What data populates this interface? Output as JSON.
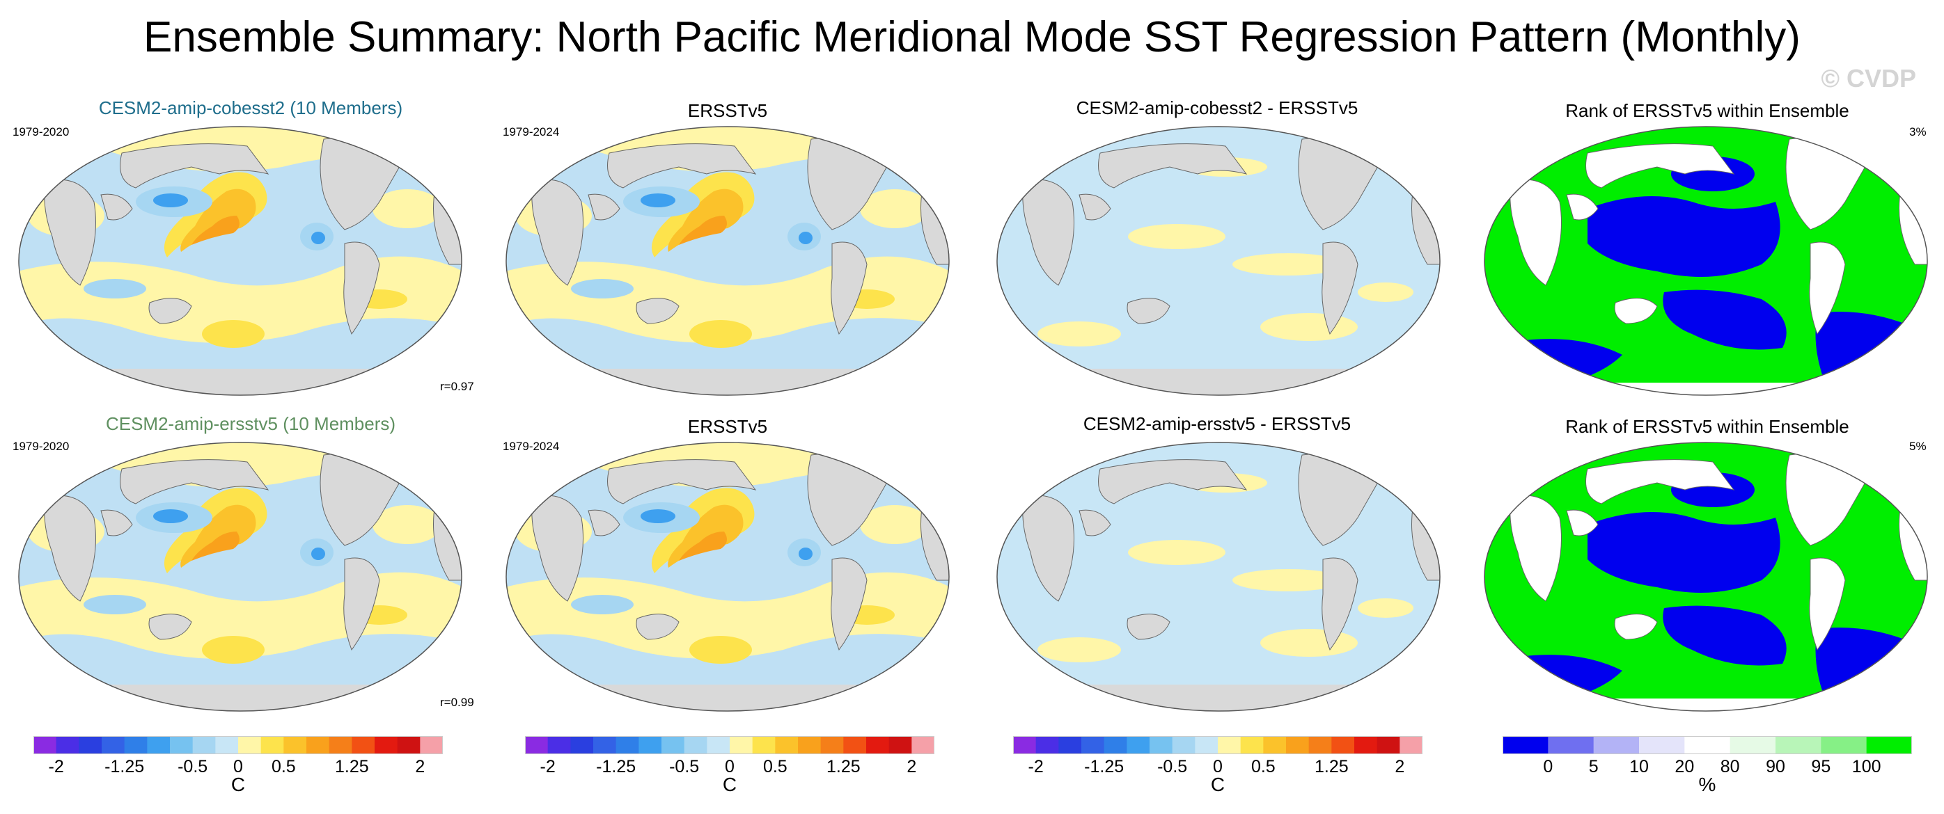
{
  "title": "Ensemble Summary: North Pacific Meridional Mode SST Regression Pattern (Monthly)",
  "watermark": "© CVDP",
  "colors": {
    "model1_title": "#1f6e8c",
    "model2_title": "#5f9060",
    "land": "#d9d9d9",
    "rank_low": "#0000ee",
    "rank_high": "#00ee00"
  },
  "rows": [
    {
      "panels": [
        {
          "title": "CESM2-amip-cobesst2 (10 Members)",
          "period": "1979-2020",
          "stat": "r=0.97"
        },
        {
          "title": "ERSSTv5",
          "period": "1979-2024",
          "stat": ""
        },
        {
          "title": "CESM2-amip-cobesst2 - ERSSTv5",
          "period": "",
          "stat": ""
        },
        {
          "title": "Rank of ERSSTv5 within Ensemble",
          "period": "",
          "stat": "3%"
        }
      ]
    },
    {
      "panels": [
        {
          "title": "CESM2-amip-ersstv5 (10 Members)",
          "period": "1979-2020",
          "stat": "r=0.99"
        },
        {
          "title": "ERSSTv5",
          "period": "1979-2024",
          "stat": ""
        },
        {
          "title": "CESM2-amip-ersstv5 - ERSSTv5",
          "period": "",
          "stat": ""
        },
        {
          "title": "Rank of ERSSTv5 within Ensemble",
          "period": "",
          "stat": "5%"
        }
      ]
    }
  ],
  "chart_data": [
    {
      "type": "colorbar",
      "unit": "C",
      "tick_labels": [
        "-2",
        "-1.25",
        "-0.5",
        "0",
        "0.5",
        "1.25",
        "2"
      ],
      "tick_values": [
        -2,
        -1.25,
        -0.5,
        0,
        0.5,
        1.25,
        2
      ],
      "levels": [
        -2,
        -1.75,
        -1.5,
        -1.25,
        -1,
        -0.75,
        -0.5,
        -0.25,
        0,
        0.25,
        0.5,
        0.75,
        1,
        1.25,
        1.5,
        1.75,
        2
      ],
      "colors": [
        "#8a2be2",
        "#4b2ee6",
        "#2a3fe0",
        "#3362e6",
        "#2f7fe8",
        "#3ea0ef",
        "#76c2f0",
        "#a6d6f2",
        "#c8e6f6",
        "#fff6a8",
        "#fde34c",
        "#fbc22b",
        "#f9a11c",
        "#f57f19",
        "#f25114",
        "#e31a10",
        "#cf1212",
        "#f5a0a8"
      ],
      "applies_to": [
        "row1 col1",
        "row1 col2",
        "row1 col3",
        "row2 col1",
        "row2 col2",
        "row2 col3"
      ]
    },
    {
      "type": "colorbar",
      "unit": "%",
      "tick_labels": [
        "0",
        "5",
        "10",
        "20",
        "80",
        "90",
        "95",
        "100"
      ],
      "tick_values": [
        0,
        5,
        10,
        20,
        80,
        90,
        95,
        100
      ],
      "colors": [
        "#0000ee",
        "#6f6ff0",
        "#b3b3f6",
        "#e4e4fa",
        "#ffffff",
        "#e6fae6",
        "#b8f5b8",
        "#86f086",
        "#00ee00"
      ],
      "applies_to": [
        "row1 col4",
        "row2 col4"
      ]
    }
  ]
}
